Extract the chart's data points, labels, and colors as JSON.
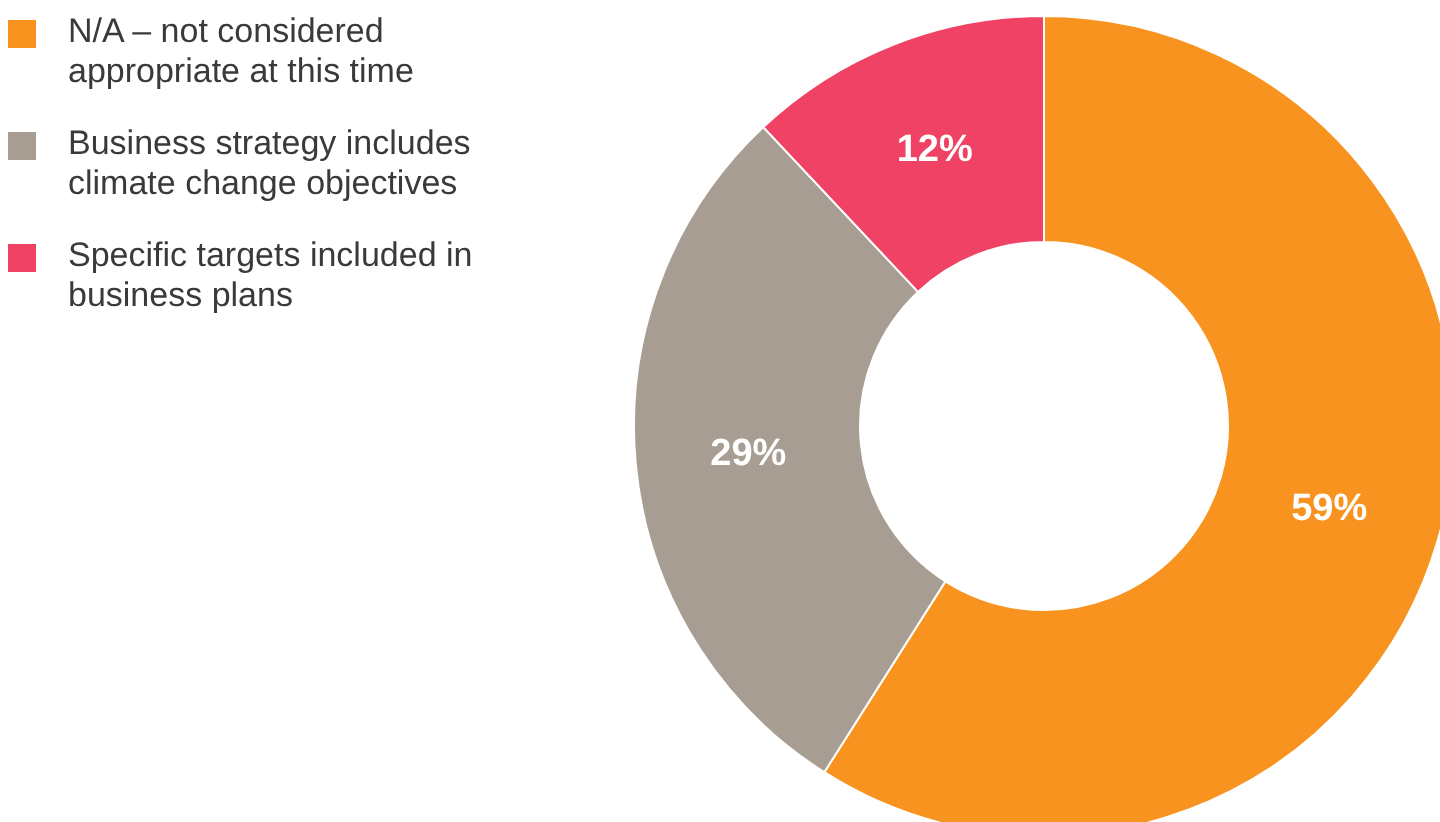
{
  "chart_data": {
    "type": "donut",
    "categories": [
      "N/A – not considered appropriate at this time",
      "Business strategy includes climate change objectives",
      "Specific targets included in business plans"
    ],
    "values": [
      59,
      29,
      12
    ],
    "colors": [
      "#f7931e",
      "#a89d92",
      "#ef4264"
    ],
    "value_labels": [
      "59%",
      "29%",
      "12%"
    ],
    "legend": "top left"
  }
}
